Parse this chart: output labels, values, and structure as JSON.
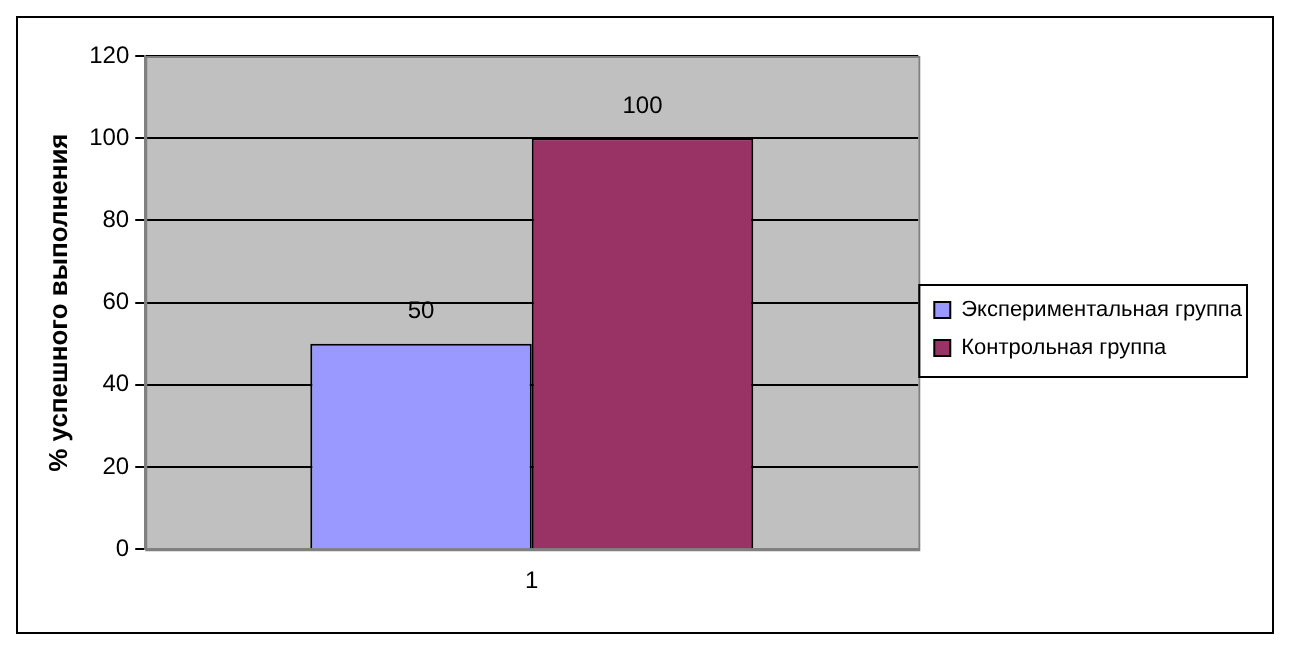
{
  "chart_data": {
    "type": "bar",
    "ylabel": "% успешного выполнения",
    "categories": [
      "1"
    ],
    "series": [
      {
        "name": "Экспериментальная группа",
        "color": "#9999ff",
        "values": [
          50
        ]
      },
      {
        "name": "Контрольная группа",
        "color": "#993366",
        "values": [
          100
        ]
      }
    ],
    "ylim": [
      0,
      120
    ],
    "yticks": [
      0,
      20,
      40,
      60,
      80,
      100,
      120
    ],
    "grid": "y",
    "legend": "right",
    "data_labels": true
  }
}
